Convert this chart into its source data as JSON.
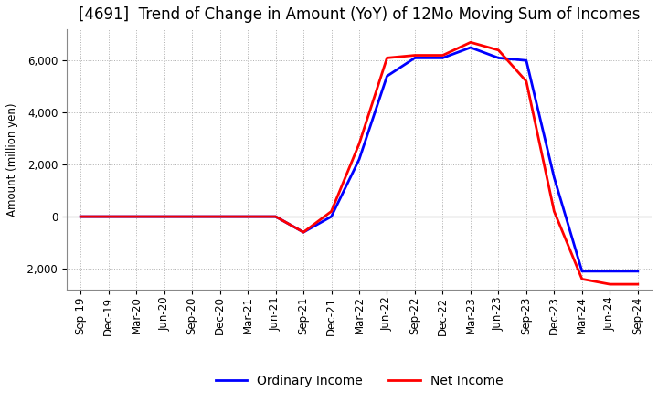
{
  "title": "[4691]  Trend of Change in Amount (YoY) of 12Mo Moving Sum of Incomes",
  "ylabel": "Amount (million yen)",
  "background_color": "#ffffff",
  "grid_color": "#b0b0b0",
  "ordinary_income_color": "#0000ff",
  "net_income_color": "#ff0000",
  "x_labels": [
    "Sep-19",
    "Dec-19",
    "Mar-20",
    "Jun-20",
    "Sep-20",
    "Dec-20",
    "Mar-21",
    "Jun-21",
    "Sep-21",
    "Dec-21",
    "Mar-22",
    "Jun-22",
    "Sep-22",
    "Dec-22",
    "Mar-23",
    "Jun-23",
    "Sep-23",
    "Dec-23",
    "Mar-24",
    "Jun-24",
    "Sep-24"
  ],
  "ordinary_income": [
    0,
    0,
    0,
    0,
    0,
    0,
    0,
    0,
    -600,
    0,
    2200,
    5400,
    6100,
    6100,
    6500,
    6100,
    6000,
    1500,
    -2100,
    -2100,
    -2100
  ],
  "net_income": [
    0,
    0,
    0,
    0,
    0,
    0,
    0,
    0,
    -600,
    200,
    2800,
    6100,
    6200,
    6200,
    6700,
    6400,
    5200,
    200,
    -2400,
    -2600,
    -2600
  ],
  "ylim": [
    -2800,
    7200
  ],
  "yticks": [
    -2000,
    0,
    2000,
    4000,
    6000
  ],
  "title_fontsize": 12,
  "legend_fontsize": 10,
  "tick_fontsize": 8.5,
  "linewidth": 2.0
}
